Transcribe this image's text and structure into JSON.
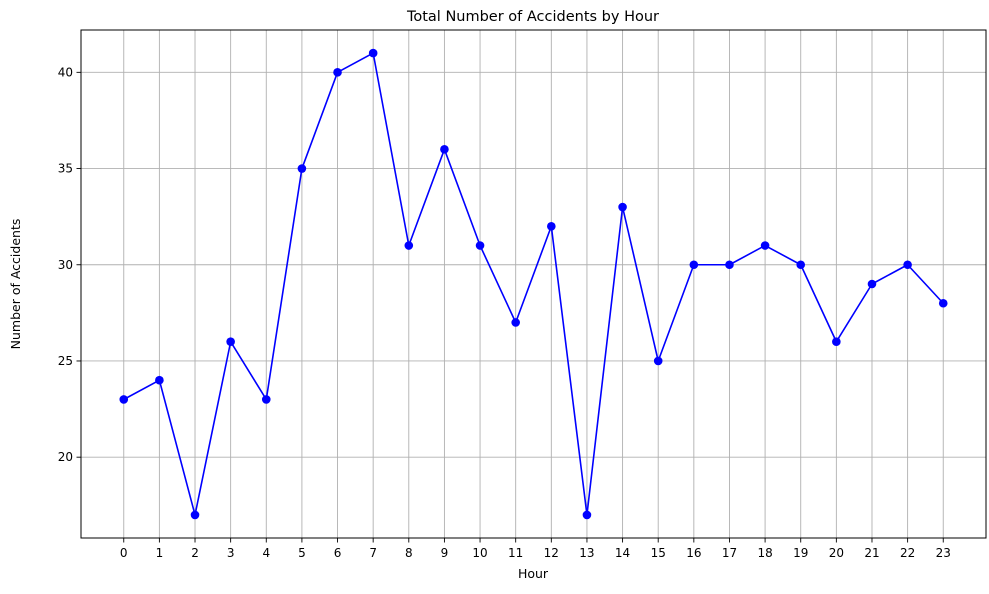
{
  "chart_data": {
    "type": "line",
    "title": "Total Number of Accidents by Hour",
    "xlabel": "Hour",
    "ylabel": "Number of Accidents",
    "x": [
      0,
      1,
      2,
      3,
      4,
      5,
      6,
      7,
      8,
      9,
      10,
      11,
      12,
      13,
      14,
      15,
      16,
      17,
      18,
      19,
      20,
      21,
      22,
      23
    ],
    "x_tick_labels": [
      "0",
      "1",
      "2",
      "3",
      "4",
      "5",
      "6",
      "7",
      "8",
      "9",
      "10",
      "11",
      "12",
      "13",
      "14",
      "15",
      "16",
      "17",
      "18",
      "19",
      "20",
      "21",
      "22",
      "23"
    ],
    "series": [
      {
        "values": [
          23,
          24,
          17,
          26,
          23,
          35,
          40,
          41,
          31,
          36,
          31,
          27,
          32,
          17,
          33,
          25,
          30,
          30,
          31,
          30,
          26,
          29,
          30,
          28
        ],
        "color": "#0000ff",
        "marker": "circle"
      }
    ],
    "xlim": [
      -1.2,
      24.2
    ],
    "ylim": [
      15.8,
      42.2
    ],
    "y_ticks": [
      20,
      25,
      30,
      35,
      40
    ],
    "y_tick_labels": [
      "20",
      "25",
      "30",
      "35",
      "40"
    ],
    "grid": true,
    "grid_color": "#b0b0b0",
    "legend": "none"
  }
}
